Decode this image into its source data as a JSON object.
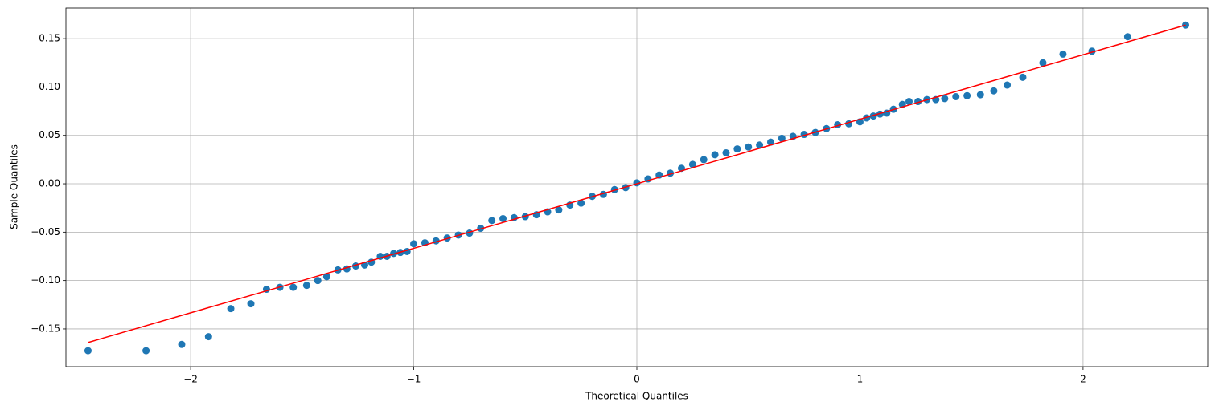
{
  "chart_data": {
    "type": "scatter",
    "x_label": "Theoretical Quantiles",
    "y_label": "Sample Quantiles",
    "color": "#1f77b4",
    "x": [
      -2.46,
      -2.2,
      -2.04,
      -1.92,
      -1.82,
      -1.73,
      -1.66,
      -1.6,
      -1.54,
      -1.48,
      -1.43,
      -1.39,
      -1.34,
      -1.3,
      -1.26,
      -1.22,
      -1.19,
      -1.15,
      -1.12,
      -1.09,
      -1.06,
      -1.03,
      -1.0,
      -0.95,
      -0.9,
      -0.85,
      -0.8,
      -0.75,
      -0.7,
      -0.65,
      -0.6,
      -0.55,
      -0.5,
      -0.45,
      -0.4,
      -0.35,
      -0.3,
      -0.25,
      -0.2,
      -0.15,
      -0.1,
      -0.05,
      0.0,
      0.05,
      0.1,
      0.15,
      0.2,
      0.25,
      0.3,
      0.35,
      0.4,
      0.45,
      0.5,
      0.55,
      0.6,
      0.65,
      0.7,
      0.75,
      0.8,
      0.85,
      0.9,
      0.95,
      1.0,
      1.03,
      1.06,
      1.09,
      1.12,
      1.15,
      1.19,
      1.22,
      1.26,
      1.3,
      1.34,
      1.38,
      1.43,
      1.48,
      1.54,
      1.6,
      1.66,
      1.73,
      1.82,
      1.91,
      2.04,
      2.2,
      2.46
    ],
    "values": [
      -0.1725,
      -0.1725,
      -0.166,
      -0.158,
      -0.129,
      -0.124,
      -0.109,
      -0.107,
      -0.107,
      -0.105,
      -0.1,
      -0.096,
      -0.089,
      -0.088,
      -0.085,
      -0.084,
      -0.081,
      -0.075,
      -0.075,
      -0.072,
      -0.071,
      -0.07,
      -0.062,
      -0.061,
      -0.059,
      -0.056,
      -0.053,
      -0.051,
      -0.046,
      -0.038,
      -0.036,
      -0.035,
      -0.034,
      -0.032,
      -0.029,
      -0.027,
      -0.022,
      -0.02,
      -0.013,
      -0.011,
      -0.006,
      -0.004,
      0.001,
      0.005,
      0.009,
      0.011,
      0.016,
      0.02,
      0.025,
      0.03,
      0.032,
      0.036,
      0.038,
      0.04,
      0.043,
      0.047,
      0.049,
      0.051,
      0.053,
      0.057,
      0.061,
      0.062,
      0.064,
      0.068,
      0.07,
      0.072,
      0.073,
      0.077,
      0.082,
      0.085,
      0.085,
      0.087,
      0.087,
      0.088,
      0.09,
      0.091,
      0.092,
      0.096,
      0.102,
      0.11,
      0.125,
      0.134,
      0.137,
      0.152,
      0.164
    ],
    "fit_line": {
      "color": "#ff0000",
      "x": [
        -2.46,
        2.46
      ],
      "values": [
        -0.164,
        0.164
      ]
    },
    "xlim": [
      -2.559,
      2.559
    ],
    "ylim": [
      -0.189,
      0.1816
    ],
    "xticks": [
      {
        "value": -2,
        "label": "−2"
      },
      {
        "value": -1,
        "label": "−1"
      },
      0,
      1,
      2
    ],
    "yticks": [
      {
        "value": -0.15,
        "label": "−0.15"
      },
      {
        "value": -0.1,
        "label": "−0.10"
      },
      {
        "value": -0.05,
        "label": "−0.05"
      },
      {
        "value": 0,
        "label": "0.00"
      },
      {
        "value": 0.05,
        "label": "0.05"
      },
      {
        "value": 0.1,
        "label": "0.10"
      },
      {
        "value": 0.15,
        "label": "0.15"
      }
    ],
    "grid": true
  }
}
